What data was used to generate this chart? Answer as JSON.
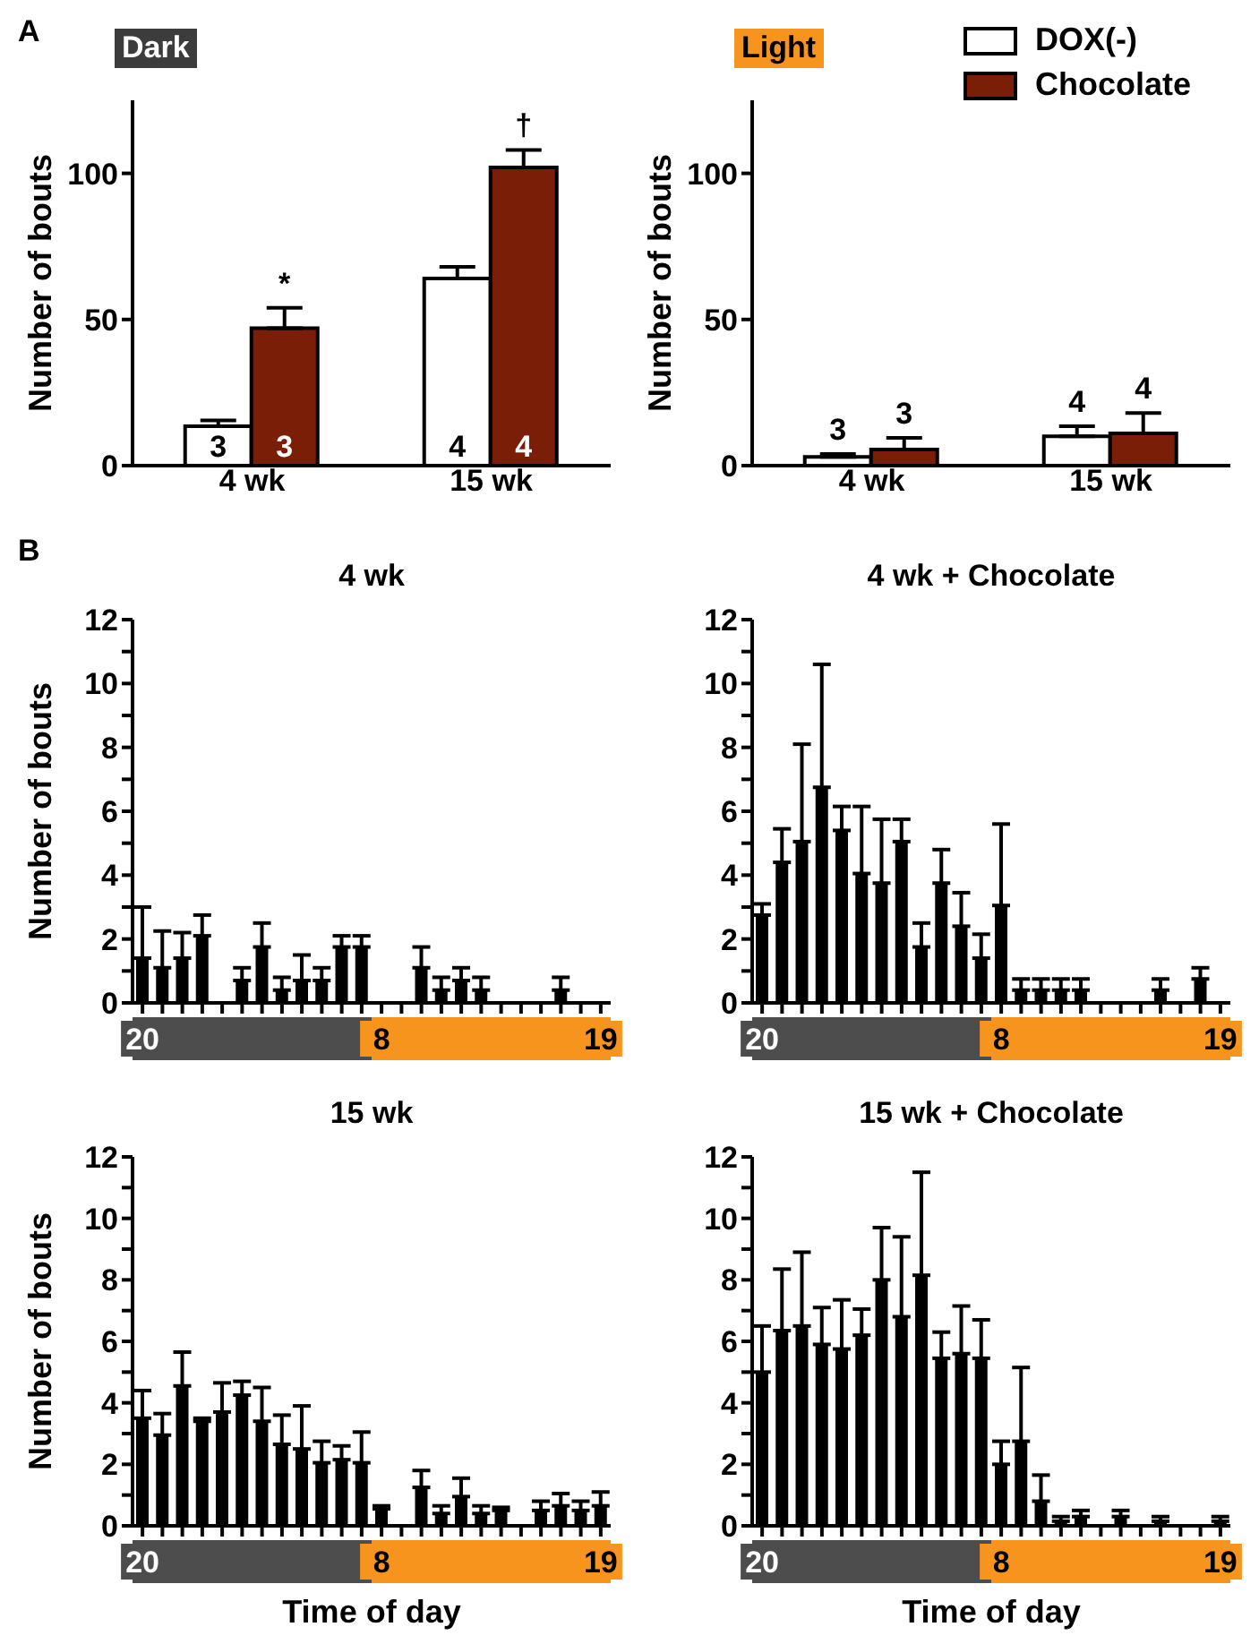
{
  "chart_data": [
    {
      "type": "bar",
      "title": "Dark",
      "ylabel": "Number of bouts",
      "categories": [
        "4 wk",
        "15 wk"
      ],
      "ylim": [
        0,
        125
      ],
      "yticks": [
        0,
        50,
        100
      ],
      "series": [
        {
          "color": "#ffffff",
          "values": [
            13.5,
            64
          ],
          "errors": [
            [
              13.5,
              15.5
            ],
            [
              64,
              68
            ]
          ]
        },
        {
          "color": "#7a1e08",
          "values": [
            47,
            102
          ],
          "errors": [
            [
              47,
              54
            ],
            [
              102,
              108
            ]
          ]
        }
      ],
      "annotations": [
        "A",
        "3",
        "3",
        "4",
        "4",
        "*",
        "†"
      ]
    },
    {
      "type": "bar",
      "title": "Light",
      "ylabel": "Number of bouts",
      "categories": [
        "4 wk",
        "15 wk"
      ],
      "ylim": [
        0,
        125
      ],
      "yticks": [
        0,
        50,
        100
      ],
      "legend": "top right",
      "series": [
        {
          "name": "DOX(-)",
          "color": "#ffffff",
          "values": [
            3,
            10
          ],
          "errors": [
            [
              3,
              4
            ],
            [
              10,
              13.5
            ]
          ]
        },
        {
          "name": "Chocolate",
          "color": "#7a1e08",
          "values": [
            5.5,
            11
          ],
          "errors": [
            [
              5.5,
              9.5
            ],
            [
              11,
              18
            ]
          ]
        }
      ],
      "annotations": [
        "3",
        "3",
        "4",
        "4"
      ]
    },
    {
      "type": "bar",
      "title": "4 wk",
      "ylabel": "Number of bouts",
      "categories": [
        "20",
        null,
        null,
        null,
        null,
        null,
        null,
        null,
        null,
        null,
        null,
        null,
        "8",
        null,
        null,
        null,
        null,
        null,
        null,
        null,
        null,
        null,
        null,
        "19"
      ],
      "ylim": [
        0,
        12
      ],
      "yticks": [
        0,
        {
          "value": 1,
          "label": null
        },
        2,
        {
          "value": 3,
          "label": null
        },
        4,
        {
          "value": 5,
          "label": null
        },
        6,
        {
          "value": 7,
          "label": null
        },
        8,
        {
          "value": 9,
          "label": null
        },
        10,
        {
          "value": 11,
          "label": null
        },
        12
      ],
      "color": "#000000",
      "values": [
        1.4,
        1.1,
        1.4,
        2.1,
        0,
        0.7,
        1.75,
        0.4,
        0.7,
        0.7,
        1.75,
        1.75,
        0,
        0,
        1.1,
        0.4,
        0.7,
        0.4,
        0,
        0,
        0,
        0.4,
        0,
        0
      ],
      "errors": [
        [
          1.4,
          3.0
        ],
        [
          1.1,
          2.25
        ],
        [
          1.4,
          2.2
        ],
        [
          2.1,
          2.75
        ],
        null,
        [
          0.7,
          1.1
        ],
        [
          1.75,
          2.5
        ],
        [
          0.4,
          0.8
        ],
        [
          0.7,
          1.5
        ],
        [
          0.7,
          1.1
        ],
        [
          1.75,
          2.1
        ],
        [
          1.75,
          2.1
        ],
        null,
        null,
        [
          1.1,
          1.75
        ],
        [
          0.4,
          0.8
        ],
        [
          0.7,
          1.1
        ],
        [
          0.4,
          0.8
        ],
        null,
        null,
        null,
        [
          0.4,
          0.8
        ],
        null,
        null
      ],
      "annotations": [
        "B"
      ]
    },
    {
      "type": "bar",
      "title": "4 wk + Chocolate",
      "categories": [
        "20",
        null,
        null,
        null,
        null,
        null,
        null,
        null,
        null,
        null,
        null,
        null,
        "8",
        null,
        null,
        null,
        null,
        null,
        null,
        null,
        null,
        null,
        null,
        "19"
      ],
      "ylim": [
        0,
        12
      ],
      "yticks": [
        0,
        {
          "value": 1,
          "label": null
        },
        2,
        {
          "value": 3,
          "label": null
        },
        4,
        {
          "value": 5,
          "label": null
        },
        6,
        {
          "value": 7,
          "label": null
        },
        8,
        {
          "value": 9,
          "label": null
        },
        10,
        {
          "value": 11,
          "label": null
        },
        12
      ],
      "color": "#000000",
      "values": [
        2.75,
        4.4,
        5.05,
        6.75,
        5.4,
        4.05,
        3.75,
        5.05,
        1.75,
        3.75,
        2.4,
        1.4,
        3.05,
        0.4,
        0.4,
        0.4,
        0.4,
        0,
        0,
        0,
        0.4,
        0,
        0.75,
        0
      ],
      "errors": [
        [
          2.75,
          3.1
        ],
        [
          4.4,
          5.45
        ],
        [
          5.05,
          8.1
        ],
        [
          6.75,
          10.6
        ],
        [
          5.4,
          6.15
        ],
        [
          4.05,
          6.15
        ],
        [
          3.75,
          5.75
        ],
        [
          5.05,
          5.75
        ],
        [
          1.75,
          2.5
        ],
        [
          3.75,
          4.8
        ],
        [
          2.4,
          3.45
        ],
        [
          1.4,
          2.15
        ],
        [
          3.05,
          5.6
        ],
        [
          0.4,
          0.75
        ],
        [
          0.4,
          0.75
        ],
        [
          0.4,
          0.75
        ],
        [
          0.4,
          0.75
        ],
        null,
        null,
        null,
        [
          0.4,
          0.75
        ],
        null,
        [
          0.75,
          1.1
        ],
        null
      ]
    },
    {
      "type": "bar",
      "title": "15 wk",
      "ylabel": "Number of bouts",
      "xlabel": "Time of day",
      "categories": [
        "20",
        null,
        null,
        null,
        null,
        null,
        null,
        null,
        null,
        null,
        null,
        null,
        "8",
        null,
        null,
        null,
        null,
        null,
        null,
        null,
        null,
        null,
        null,
        "19"
      ],
      "ylim": [
        0,
        12
      ],
      "yticks": [
        0,
        {
          "value": 1,
          "label": null
        },
        2,
        {
          "value": 3,
          "label": null
        },
        4,
        {
          "value": 5,
          "label": null
        },
        6,
        {
          "value": 7,
          "label": null
        },
        8,
        {
          "value": 9,
          "label": null
        },
        10,
        {
          "value": 11,
          "label": null
        },
        12
      ],
      "color": "#000000",
      "values": [
        3.5,
        2.95,
        4.55,
        3.4,
        3.7,
        4.25,
        3.4,
        2.65,
        2.5,
        2.05,
        2.15,
        2.05,
        0.55,
        0,
        1.25,
        0.4,
        0.95,
        0.4,
        0.5,
        0,
        0.5,
        0.65,
        0.5,
        0.65
      ],
      "errors": [
        [
          3.5,
          4.4
        ],
        [
          2.95,
          3.65
        ],
        [
          4.55,
          5.65
        ],
        [
          3.4,
          3.5
        ],
        [
          3.7,
          4.65
        ],
        [
          4.25,
          4.7
        ],
        [
          3.4,
          4.5
        ],
        [
          2.65,
          3.6
        ],
        [
          2.5,
          3.9
        ],
        [
          2.05,
          2.75
        ],
        [
          2.15,
          2.6
        ],
        [
          2.05,
          3.05
        ],
        [
          0.55,
          0.65
        ],
        null,
        [
          1.25,
          1.8
        ],
        [
          0.4,
          0.65
        ],
        [
          0.95,
          1.55
        ],
        [
          0.4,
          0.65
        ],
        [
          0.5,
          0.6
        ],
        null,
        [
          0.5,
          0.8
        ],
        [
          0.65,
          1.05
        ],
        [
          0.5,
          0.8
        ],
        [
          0.65,
          1.1
        ]
      ]
    },
    {
      "type": "bar",
      "title": "15 wk + Chocolate",
      "xlabel": "Time of day",
      "categories": [
        "20",
        null,
        null,
        null,
        null,
        null,
        null,
        null,
        null,
        null,
        null,
        null,
        "8",
        null,
        null,
        null,
        null,
        null,
        null,
        null,
        null,
        null,
        null,
        "19"
      ],
      "ylim": [
        0,
        12
      ],
      "yticks": [
        0,
        {
          "value": 1,
          "label": null
        },
        2,
        {
          "value": 3,
          "label": null
        },
        4,
        {
          "value": 5,
          "label": null
        },
        6,
        {
          "value": 7,
          "label": null
        },
        8,
        {
          "value": 9,
          "label": null
        },
        10,
        {
          "value": 11,
          "label": null
        },
        12
      ],
      "color": "#000000",
      "values": [
        5.0,
        6.35,
        6.5,
        5.9,
        5.75,
        6.2,
        8.0,
        6.8,
        8.15,
        5.45,
        5.6,
        5.45,
        2.0,
        2.75,
        0.8,
        0.15,
        0.3,
        0,
        0.3,
        0,
        0.15,
        0,
        0,
        0.15
      ],
      "errors": [
        [
          5.0,
          6.5
        ],
        [
          6.35,
          8.35
        ],
        [
          6.5,
          8.9
        ],
        [
          5.9,
          7.1
        ],
        [
          5.75,
          7.35
        ],
        [
          6.2,
          7.05
        ],
        [
          8.0,
          9.7
        ],
        [
          6.8,
          9.4
        ],
        [
          8.15,
          11.5
        ],
        [
          5.45,
          6.3
        ],
        [
          5.6,
          7.15
        ],
        [
          5.45,
          6.7
        ],
        [
          2.0,
          2.75
        ],
        [
          2.75,
          5.15
        ],
        [
          0.8,
          1.65
        ],
        [
          0.15,
          0.3
        ],
        [
          0.3,
          0.5
        ],
        null,
        [
          0.3,
          0.5
        ],
        null,
        [
          0.15,
          0.3
        ],
        null,
        null,
        [
          0.15,
          0.3
        ]
      ]
    }
  ]
}
